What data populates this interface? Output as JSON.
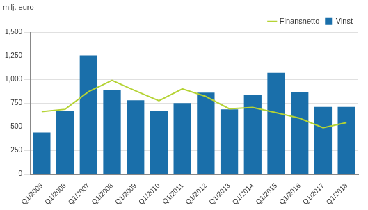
{
  "chart_data": {
    "type": "bar",
    "ylabel": "milj. euro",
    "categories": [
      "Q1/2005",
      "Q1/2006",
      "Q1/2007",
      "Q1/2008",
      "Q1/2009",
      "Q1/2010",
      "Q1/2011",
      "Q1/2012",
      "Q1/2013",
      "Q1/2014",
      "Q1/2015",
      "Q1/2016",
      "Q1/2017",
      "Q1/2018"
    ],
    "series": [
      {
        "name": "Vinst",
        "type": "bar",
        "color": "#1a6faa",
        "values": [
          440,
          665,
          1255,
          885,
          780,
          670,
          750,
          860,
          685,
          835,
          1070,
          865,
          710,
          710
        ]
      },
      {
        "name": "Finansnetto",
        "type": "line",
        "color": "#b5d334",
        "values": [
          660,
          685,
          870,
          990,
          880,
          775,
          900,
          820,
          690,
          705,
          650,
          590,
          490,
          545
        ]
      }
    ],
    "ylim": [
      0,
      1500
    ],
    "yticks": [
      0,
      250,
      500,
      750,
      1000,
      1250,
      1500
    ],
    "grid": true,
    "legend": "top-right"
  }
}
